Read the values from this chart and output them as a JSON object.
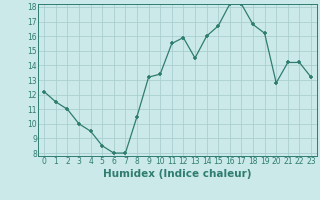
{
  "x": [
    0,
    1,
    2,
    3,
    4,
    5,
    6,
    7,
    8,
    9,
    10,
    11,
    12,
    13,
    14,
    15,
    16,
    17,
    18,
    19,
    20,
    21,
    22,
    23
  ],
  "y": [
    12.2,
    11.5,
    11.0,
    10.0,
    9.5,
    8.5,
    8.0,
    8.0,
    10.5,
    13.2,
    13.4,
    15.5,
    15.9,
    14.5,
    16.0,
    16.7,
    18.2,
    18.2,
    16.8,
    16.2,
    12.8,
    14.2,
    14.2,
    13.2
  ],
  "line_color": "#2e7d6e",
  "marker": "+",
  "marker_size": 3.5,
  "marker_lw": 1.2,
  "bg_color": "#cce9e9",
  "grid_color": "#aacece",
  "xlabel": "Humidex (Indice chaleur)",
  "ylim": [
    8,
    18
  ],
  "xlim": [
    -0.5,
    23.5
  ],
  "xticks": [
    0,
    1,
    2,
    3,
    4,
    5,
    6,
    7,
    8,
    9,
    10,
    11,
    12,
    13,
    14,
    15,
    16,
    17,
    18,
    19,
    20,
    21,
    22,
    23
  ],
  "yticks": [
    8,
    9,
    10,
    11,
    12,
    13,
    14,
    15,
    16,
    17,
    18
  ],
  "tick_fontsize": 5.5,
  "xlabel_fontsize": 7.5,
  "label_color": "#2e7d6e"
}
